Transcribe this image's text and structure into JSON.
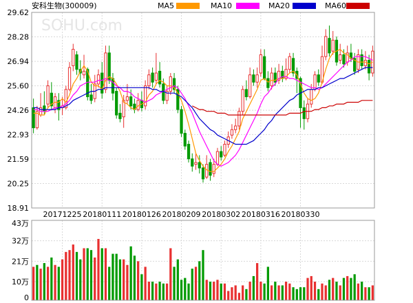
{
  "header": {
    "title": "安科生物(300009)",
    "legend": [
      {
        "label": "MA5",
        "color": "#ff9900"
      },
      {
        "label": "MA10",
        "color": "#ff00ff"
      },
      {
        "label": "MA20",
        "color": "#0000cc"
      },
      {
        "label": "MA60",
        "color": "#cc0000"
      }
    ]
  },
  "watermark": "SOHU.com",
  "colors": {
    "up": "#e83030",
    "down": "#009a00",
    "grid": "#d8d8d8",
    "axis": "#000000",
    "border": "#999999"
  },
  "chart_data": [
    {
      "type": "candlestick",
      "title": "安科生物(300009)",
      "y_ticks": [
        "29.62",
        "28.28",
        "26.94",
        "25.60",
        "24.26",
        "22.93",
        "21.59",
        "20.25",
        "18.91"
      ],
      "ylim": [
        18.91,
        29.62
      ],
      "x_ticks": [
        "20171225",
        "20180111",
        "20180126",
        "20180209",
        "20180302",
        "20180316",
        "20180330"
      ],
      "x_tick_positions": [
        8,
        19,
        30,
        41,
        52,
        63,
        74
      ],
      "grid": true,
      "candles": [
        [
          24.4,
          23.3,
          24.9,
          23.0
        ],
        [
          23.3,
          24.2,
          24.5,
          23.2
        ],
        [
          24.0,
          24.4,
          25.2,
          23.9
        ],
        [
          24.5,
          24.2,
          25.3,
          24.0
        ],
        [
          24.6,
          25.6,
          25.9,
          24.4
        ],
        [
          25.2,
          24.5,
          25.8,
          24.3
        ],
        [
          24.4,
          25.0,
          25.2,
          24.1
        ],
        [
          24.8,
          24.3,
          25.2,
          23.7
        ],
        [
          24.4,
          24.5,
          25.0,
          24.0
        ],
        [
          24.4,
          25.4,
          25.6,
          24.3
        ],
        [
          25.4,
          26.6,
          26.9,
          25.3
        ],
        [
          26.7,
          27.6,
          27.9,
          26.4
        ],
        [
          27.3,
          26.5,
          27.5,
          26.2
        ],
        [
          26.5,
          26.3,
          27.0,
          25.9
        ],
        [
          26.2,
          26.4,
          27.3,
          26.0
        ],
        [
          26.5,
          25.0,
          26.6,
          24.8
        ],
        [
          25.1,
          24.8,
          25.7,
          24.6
        ],
        [
          24.9,
          25.7,
          26.2,
          24.7
        ],
        [
          25.7,
          26.2,
          26.5,
          25.5
        ],
        [
          26.3,
          25.2,
          26.9,
          24.9
        ],
        [
          25.4,
          27.4,
          27.8,
          25.2
        ],
        [
          27.4,
          25.9,
          27.8,
          25.7
        ],
        [
          26.0,
          25.2,
          26.3,
          24.8
        ],
        [
          25.3,
          24.0,
          25.5,
          23.8
        ],
        [
          24.1,
          23.8,
          24.6,
          23.6
        ],
        [
          23.9,
          24.8,
          25.1,
          23.3
        ],
        [
          24.8,
          25.0,
          25.7,
          24.6
        ],
        [
          25.0,
          24.5,
          25.4,
          24.3
        ],
        [
          24.6,
          24.3,
          24.9,
          24.1
        ],
        [
          24.3,
          24.8,
          25.2,
          24.2
        ],
        [
          24.8,
          24.4,
          25.3,
          24.2
        ],
        [
          24.5,
          25.6,
          25.9,
          24.3
        ],
        [
          25.6,
          26.2,
          26.5,
          25.4
        ],
        [
          26.3,
          25.8,
          26.6,
          25.5
        ],
        [
          25.9,
          26.3,
          27.4,
          25.7
        ],
        [
          26.4,
          25.7,
          26.9,
          25.5
        ],
        [
          25.7,
          24.8,
          26.0,
          24.6
        ],
        [
          24.8,
          25.3,
          25.6,
          24.6
        ],
        [
          25.3,
          26.1,
          26.3,
          25.1
        ],
        [
          26.0,
          25.4,
          26.3,
          25.2
        ],
        [
          25.4,
          24.3,
          25.6,
          24.1
        ],
        [
          24.3,
          23.0,
          24.5,
          22.8
        ],
        [
          23.0,
          22.3,
          23.2,
          22.1
        ],
        [
          22.4,
          21.6,
          22.6,
          21.4
        ],
        [
          21.6,
          21.2,
          21.9,
          20.9
        ],
        [
          21.3,
          21.4,
          21.9,
          21.0
        ],
        [
          21.4,
          21.1,
          21.8,
          20.8
        ],
        [
          21.1,
          20.5,
          21.3,
          20.3
        ],
        [
          20.6,
          21.3,
          21.8,
          20.5
        ],
        [
          21.4,
          20.7,
          21.6,
          20.4
        ],
        [
          20.8,
          21.3,
          21.6,
          20.6
        ],
        [
          21.3,
          22.0,
          22.2,
          21.2
        ],
        [
          22.0,
          21.7,
          22.3,
          21.5
        ],
        [
          21.8,
          22.4,
          22.6,
          21.7
        ],
        [
          22.4,
          22.8,
          23.1,
          22.2
        ],
        [
          22.9,
          23.2,
          23.5,
          22.7
        ],
        [
          23.2,
          23.4,
          23.8,
          23.0
        ],
        [
          23.4,
          24.2,
          24.4,
          23.2
        ],
        [
          24.2,
          25.4,
          25.6,
          24.0
        ],
        [
          25.4,
          25.0,
          25.9,
          24.8
        ],
        [
          25.0,
          26.2,
          26.6,
          24.9
        ],
        [
          26.2,
          25.8,
          26.5,
          25.6
        ],
        [
          25.8,
          26.2,
          26.6,
          25.5
        ],
        [
          26.3,
          27.3,
          27.6,
          26.1
        ],
        [
          27.2,
          26.0,
          27.6,
          25.9
        ],
        [
          26.0,
          25.5,
          26.4,
          25.3
        ],
        [
          25.6,
          26.3,
          26.6,
          25.4
        ],
        [
          26.3,
          25.8,
          26.6,
          25.6
        ],
        [
          25.9,
          26.4,
          26.8,
          25.7
        ],
        [
          26.4,
          26.0,
          26.7,
          25.8
        ],
        [
          26.0,
          26.5,
          27.1,
          25.9
        ],
        [
          26.5,
          27.2,
          27.4,
          26.3
        ],
        [
          27.1,
          26.3,
          27.4,
          26.1
        ],
        [
          26.4,
          26.0,
          26.6,
          25.2
        ],
        [
          26.0,
          24.4,
          26.1,
          23.3
        ],
        [
          24.4,
          23.8,
          24.8,
          23.2
        ],
        [
          23.8,
          24.6,
          24.9,
          23.6
        ],
        [
          24.6,
          25.4,
          25.7,
          24.4
        ],
        [
          25.4,
          26.2,
          26.4,
          25.3
        ],
        [
          26.2,
          25.8,
          26.5,
          25.6
        ],
        [
          25.8,
          27.2,
          27.8,
          25.7
        ],
        [
          27.2,
          28.3,
          28.7,
          27.0
        ],
        [
          28.2,
          27.4,
          28.9,
          27.2
        ],
        [
          27.5,
          28.1,
          28.6,
          27.3
        ],
        [
          28.1,
          26.9,
          28.3,
          26.7
        ],
        [
          27.0,
          27.3,
          27.9,
          26.8
        ],
        [
          27.3,
          26.8,
          27.6,
          26.6
        ],
        [
          26.9,
          27.4,
          27.8,
          26.7
        ],
        [
          27.4,
          27.1,
          27.9,
          26.9
        ],
        [
          27.1,
          26.4,
          27.4,
          26.2
        ],
        [
          26.5,
          27.3,
          27.6,
          26.3
        ],
        [
          27.3,
          26.7,
          27.6,
          26.5
        ],
        [
          26.7,
          27.0,
          27.5,
          26.5
        ],
        [
          27.0,
          26.3,
          27.3,
          25.9
        ],
        [
          26.3,
          27.5,
          27.8,
          26.1
        ]
      ],
      "series": [
        {
          "name": "MA5",
          "color": "#ff9900",
          "values": [
            24.1,
            24.1,
            24.0,
            24.0,
            24.4,
            24.6,
            24.7,
            24.7,
            24.9,
            24.7,
            25.1,
            25.7,
            26.0,
            26.4,
            26.7,
            26.4,
            25.8,
            25.6,
            25.6,
            25.4,
            25.9,
            26.1,
            26.0,
            25.7,
            25.3,
            24.7,
            24.6,
            24.4,
            24.3,
            24.5,
            24.6,
            24.7,
            25.1,
            25.3,
            25.7,
            25.9,
            25.8,
            25.6,
            25.6,
            25.5,
            25.2,
            24.8,
            24.2,
            23.5,
            22.7,
            21.9,
            21.5,
            21.2,
            21.0,
            20.9,
            20.9,
            21.1,
            21.3,
            21.6,
            22.0,
            22.3,
            22.7,
            23.1,
            23.8,
            24.2,
            24.6,
            25.0,
            25.4,
            25.9,
            26.0,
            25.8,
            25.9,
            25.9,
            26.0,
            26.0,
            26.1,
            26.3,
            26.4,
            26.2,
            25.7,
            25.2,
            24.9,
            24.8,
            24.9,
            25.2,
            25.8,
            26.5,
            27.1,
            27.4,
            27.5,
            27.6,
            27.4,
            27.3,
            27.1,
            27.0,
            26.9,
            26.9,
            26.9,
            26.8,
            26.9
          ]
        },
        {
          "name": "MA10",
          "color": "#ff00ff",
          "values": [
            24.3,
            24.3,
            24.2,
            24.2,
            24.2,
            24.3,
            24.4,
            24.4,
            24.5,
            24.6,
            24.8,
            25.1,
            25.3,
            25.6,
            25.7,
            25.8,
            25.8,
            25.8,
            25.9,
            25.9,
            26.0,
            25.9,
            25.8,
            25.6,
            25.5,
            25.3,
            25.3,
            25.2,
            25.0,
            24.9,
            24.8,
            24.7,
            24.8,
            24.9,
            25.1,
            25.2,
            25.3,
            25.4,
            25.5,
            25.6,
            25.5,
            25.2,
            24.9,
            24.5,
            24.1,
            23.6,
            23.1,
            22.7,
            22.3,
            21.9,
            21.5,
            21.3,
            21.2,
            21.3,
            21.4,
            21.6,
            21.8,
            22.1,
            22.5,
            22.9,
            23.3,
            23.7,
            24.1,
            24.6,
            25.0,
            25.2,
            25.5,
            25.7,
            26.0,
            26.1,
            26.1,
            26.0,
            26.0,
            25.9,
            25.8,
            25.7,
            25.6,
            25.5,
            25.5,
            25.4,
            25.5,
            25.7,
            25.9,
            26.1,
            26.3,
            26.5,
            26.7,
            26.9,
            27.0,
            27.2,
            27.2,
            27.2,
            27.2,
            27.1,
            27.0
          ]
        },
        {
          "name": "MA20",
          "color": "#0000cc",
          "values": [
            24.4,
            24.4,
            24.3,
            24.3,
            24.3,
            24.3,
            24.3,
            24.4,
            24.4,
            24.5,
            24.6,
            24.8,
            24.9,
            25.0,
            25.1,
            25.2,
            25.3,
            25.3,
            25.4,
            25.4,
            25.5,
            25.5,
            25.5,
            25.5,
            25.5,
            25.5,
            25.5,
            25.5,
            25.5,
            25.5,
            25.5,
            25.5,
            25.5,
            25.4,
            25.4,
            25.3,
            25.3,
            25.2,
            25.2,
            25.2,
            25.1,
            25.0,
            24.8,
            24.6,
            24.4,
            24.1,
            23.8,
            23.6,
            23.4,
            23.2,
            23.1,
            22.9,
            22.8,
            22.7,
            22.6,
            22.5,
            22.4,
            22.4,
            22.4,
            22.4,
            22.5,
            22.6,
            22.8,
            23.0,
            23.2,
            23.5,
            23.7,
            24.0,
            24.2,
            24.4,
            24.6,
            24.8,
            24.9,
            25.1,
            25.2,
            25.3,
            25.4,
            25.4,
            25.4,
            25.5,
            25.5,
            25.6,
            25.7,
            25.8,
            25.9,
            26.0,
            26.0,
            26.1,
            26.2,
            26.3,
            26.4,
            26.5,
            26.6,
            26.6,
            26.6
          ]
        },
        {
          "name": "MA60",
          "color": "#cc0000",
          "values": [
            null,
            null,
            null,
            null,
            null,
            null,
            null,
            null,
            null,
            null,
            null,
            null,
            null,
            null,
            null,
            null,
            null,
            null,
            null,
            null,
            null,
            null,
            null,
            null,
            null,
            null,
            null,
            null,
            null,
            null,
            null,
            null,
            null,
            null,
            null,
            null,
            null,
            null,
            null,
            null,
            null,
            null,
            null,
            null,
            24.5,
            24.4,
            24.3,
            24.3,
            24.2,
            24.2,
            24.2,
            24.1,
            24.1,
            24.1,
            24.0,
            24.0,
            24.0,
            24.0,
            24.0,
            24.0,
            24.0,
            24.0,
            24.0,
            24.0,
            24.0,
            24.0,
            24.0,
            24.0,
            24.0,
            24.0,
            24.0,
            24.1,
            24.1,
            24.1,
            24.1,
            24.2,
            24.2,
            24.2,
            24.3,
            24.3,
            24.4,
            24.4,
            24.5,
            24.5,
            24.6,
            24.6,
            24.6,
            24.7,
            24.7,
            24.7,
            24.7,
            24.8,
            24.8,
            24.8,
            24.8
          ]
        }
      ]
    },
    {
      "type": "bar",
      "title": "",
      "y_ticks": [
        "43万",
        "32万",
        "21万",
        "10万",
        "0"
      ],
      "ylim": [
        0,
        43
      ],
      "unit": "万",
      "volumes": [
        18,
        19,
        17,
        20,
        18,
        23,
        19,
        18,
        22,
        26,
        27,
        30,
        26,
        22,
        28,
        28,
        27,
        23,
        33,
        28,
        28,
        18,
        25,
        25,
        22,
        22,
        19,
        29,
        24,
        21,
        14,
        18,
        10,
        10,
        9,
        10,
        9,
        9,
        28,
        18,
        22,
        11,
        12,
        9,
        17,
        18,
        21,
        27,
        11,
        10,
        10,
        11,
        9,
        9,
        5,
        7,
        8,
        4,
        8,
        6,
        10,
        13,
        20,
        10,
        9,
        18,
        8,
        10,
        8,
        8,
        10,
        9,
        7,
        6,
        7,
        7,
        12,
        13,
        10,
        6,
        9,
        8,
        11,
        12,
        10,
        8,
        12,
        13,
        12,
        14,
        9,
        10,
        7,
        7,
        8
      ],
      "directions": [
        "u",
        "d",
        "u",
        "d",
        "u",
        "d",
        "u",
        "d",
        "u",
        "u",
        "u",
        "u",
        "d",
        "d",
        "u",
        "d",
        "d",
        "u",
        "u",
        "d",
        "u",
        "d",
        "d",
        "d",
        "d",
        "u",
        "u",
        "d",
        "d",
        "u",
        "d",
        "u",
        "u",
        "d",
        "u",
        "d",
        "d",
        "u",
        "u",
        "d",
        "d",
        "d",
        "d",
        "d",
        "d",
        "u",
        "d",
        "d",
        "u",
        "d",
        "u",
        "u",
        "d",
        "u",
        "u",
        "u",
        "u",
        "u",
        "u",
        "d",
        "u",
        "d",
        "u",
        "u",
        "d",
        "d",
        "u",
        "d",
        "u",
        "d",
        "u",
        "u",
        "d",
        "d",
        "d",
        "d",
        "u",
        "u",
        "u",
        "d",
        "u",
        "u",
        "d",
        "u",
        "d",
        "u",
        "d",
        "u",
        "d",
        "d",
        "u",
        "d",
        "u",
        "d",
        "u"
      ]
    }
  ]
}
